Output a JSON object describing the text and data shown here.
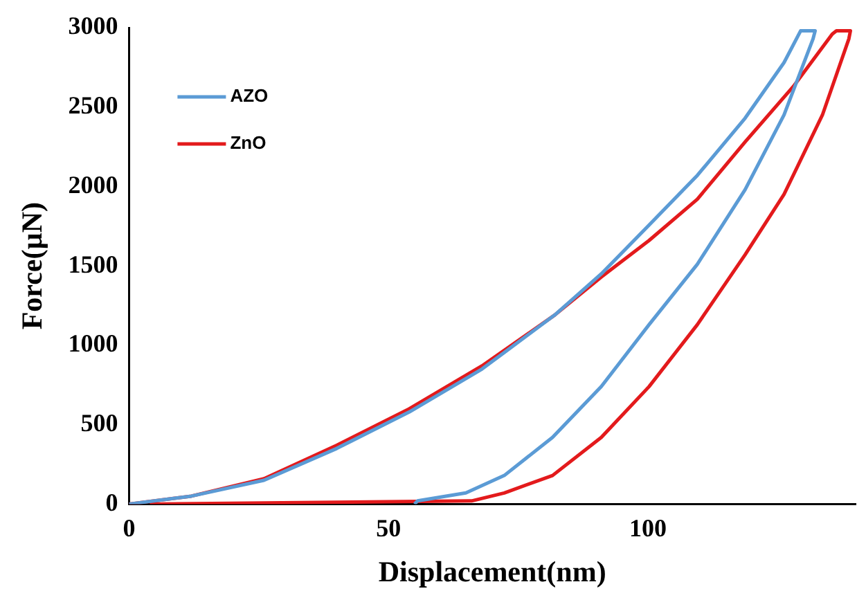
{
  "chart_data": {
    "type": "line",
    "xlabel": "Displacement(nm)",
    "ylabel": "Force(µN)",
    "xlim": [
      0,
      140
    ],
    "xticks": [
      0,
      50,
      100
    ],
    "ylim": [
      0,
      3000
    ],
    "yticks": [
      0,
      500,
      1000,
      1500,
      2000,
      2500,
      3000
    ],
    "grid": false,
    "legend": "top left",
    "marker": "none",
    "line_style": "solid",
    "series": [
      {
        "name": "AZO",
        "color": "#5b9bd5",
        "x": [
          0,
          12,
          26,
          40,
          54,
          68,
          82,
          91,
          100,
          109.5,
          118.7,
          126.2,
          129.4,
          132.2,
          131.8,
          126.2,
          118.7,
          109.5,
          100.2,
          91,
          81.6,
          72.3,
          64.9,
          55.6,
          55
        ],
        "values": [
          0,
          50,
          150,
          350,
          580,
          850,
          1190,
          1450,
          1750,
          2070,
          2430,
          2780,
          2980,
          2980,
          2930,
          2450,
          1980,
          1510,
          1130,
          740,
          420,
          180,
          70,
          20,
          0
        ]
      },
      {
        "name": "ZnO",
        "color": "#e31a1c",
        "x": [
          0,
          12,
          26,
          40,
          54,
          68,
          82,
          91,
          100.2,
          109.5,
          118.7,
          128,
          135.5,
          136.3,
          139,
          138.7,
          133.6,
          126.2,
          118.7,
          109.5,
          100.2,
          91,
          81.6,
          72.3,
          66,
          4
        ],
        "values": [
          0,
          50,
          160,
          370,
          600,
          870,
          1190,
          1430,
          1660,
          1920,
          2280,
          2630,
          2960,
          2980,
          2980,
          2930,
          2450,
          1950,
          1570,
          1130,
          740,
          420,
          180,
          70,
          20,
          0
        ]
      }
    ]
  }
}
